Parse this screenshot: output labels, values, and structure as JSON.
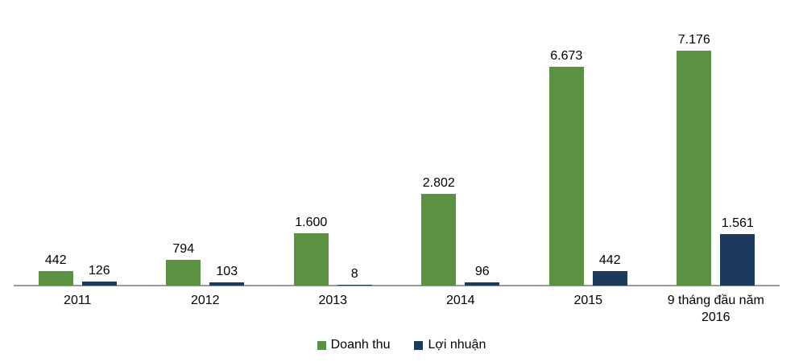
{
  "chart_data": {
    "type": "bar",
    "title": "",
    "xlabel": "",
    "ylabel": "",
    "categories": [
      "2011",
      "2012",
      "2013",
      "2014",
      "2015",
      "9 tháng đầu năm 2016"
    ],
    "series": [
      {
        "name": "Doanh thu",
        "color": "#5A9242",
        "values": [
          442,
          794,
          1600,
          2802,
          6673,
          7176
        ],
        "value_labels": [
          "442",
          "794",
          "1.600",
          "2.802",
          "6.673",
          "7.176"
        ]
      },
      {
        "name": "Lợi nhuận",
        "color": "#1B3A5C",
        "values": [
          126,
          103,
          8,
          96,
          442,
          1561
        ],
        "value_labels": [
          "126",
          "103",
          "8",
          "96",
          "442",
          "1.561"
        ]
      }
    ],
    "ylim": [
      0,
      7600
    ],
    "grid": false,
    "legend_position": "bottom",
    "axis_color": "#9B9B9B",
    "number_format": "thousands separator is dot (vi-VN)"
  }
}
